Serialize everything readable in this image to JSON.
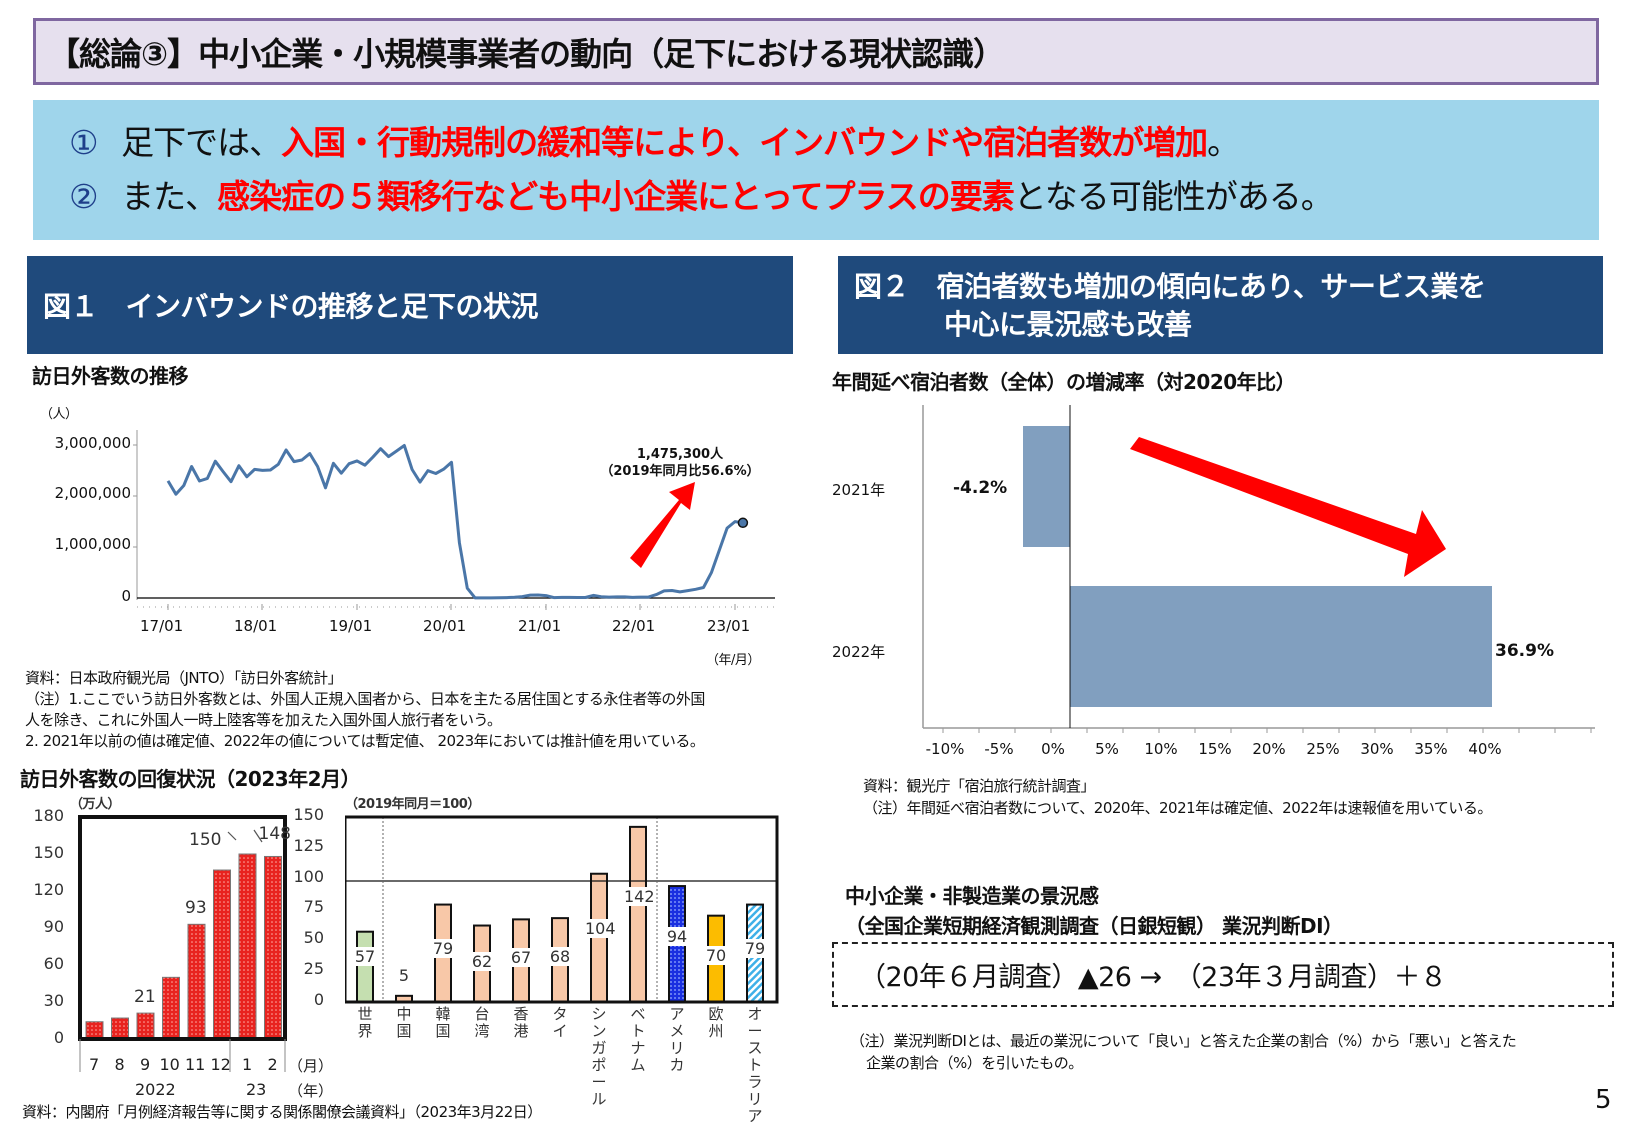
{
  "page": {
    "title": "【総論③】中小企業・小規模事業者の動向（足下における現状認識）",
    "page_number": "5"
  },
  "summary": {
    "line1": {
      "num": "①",
      "pre": "足下では、",
      "highlight": "入国・行動規制の緩和等により、インバウンドや宿泊者数が増加",
      "post": "。"
    },
    "line2": {
      "num": "②",
      "pre": "また、",
      "highlight": "感染症の５類移行なども中小企業にとってプラスの要素",
      "post": "となる可能性がある。"
    },
    "highlight_color": "#ff0000",
    "background": "#9fd5eb"
  },
  "fig1": {
    "header": "図１　インバウンドの推移と足下の状況",
    "line_chart": {
      "title": "訪日外客数の推移",
      "unit": "（人）",
      "y_ticks": [
        "3,000,000",
        "2,000,000",
        "1,000,000",
        "0"
      ],
      "x_ticks": [
        "17/01",
        "18/01",
        "19/01",
        "20/01",
        "21/01",
        "22/01",
        "23/01"
      ],
      "x_unit": "（年/月）",
      "annotation_line1": "1,475,300人",
      "annotation_line2": "（2019年同月比56.6%）"
    },
    "source": "資料：日本政府観光局（JNTO）「訪日外客統計」",
    "note1": "（注）1.ここでいう訪日外客数とは、外国人正規入国者から、日本を主たる居住国とする永住者等の外国",
    "note1b": "人を除き、これに外国人一時上陸客等を加えた入国外国人旅行者をいう。",
    "note2": "2. 2021年以前の値は確定値、2022年の値については暫定値、 2023年においては推計値を用いている。",
    "recovery": {
      "title": "訪日外客数の回復状況（2023年2月）",
      "left_unit": "（万人）",
      "left_y_ticks": [
        "180",
        "150",
        "120",
        "90",
        "60",
        "30",
        "0"
      ],
      "left_months": [
        "7",
        "8",
        "9",
        "10",
        "11",
        "12",
        "1",
        "2"
      ],
      "left_years": [
        "2022",
        "23"
      ],
      "month_unit": "（月）",
      "year_unit": "（年）",
      "left_labels": [
        "",
        "",
        "21",
        "",
        "93",
        "",
        "150",
        "148"
      ],
      "right_unit": "（2019年同月＝100）",
      "right_y_ticks": [
        "150",
        "125",
        "100",
        "75",
        "50",
        "25",
        "0"
      ],
      "right_categories": [
        "世界",
        "中国",
        "韓国",
        "台湾",
        "香港",
        "タイ",
        "シンガポール",
        "ベトナム",
        "アメリカ",
        "欧州",
        "オーストラリア"
      ],
      "right_labels": [
        "57",
        "5",
        "79",
        "62",
        "67",
        "68",
        "104",
        "142",
        "94",
        "70",
        "79"
      ]
    },
    "recovery_source": "資料：内閣府「月例経済報告等に関する関係閣僚会議資料」（2023年3月22日）"
  },
  "fig2": {
    "header_line1": "図２　宿泊者数も増加の傾向にあり、サービス業を",
    "header_line2": "中心に景況感も改善",
    "bar_chart_title": "年間延べ宿泊者数（全体）の増減率（対2020年比）",
    "categories": [
      "2021年",
      "2022年"
    ],
    "value_labels": [
      "-4.2%",
      "36.9%"
    ],
    "x_ticks": [
      "-10%",
      "-5%",
      "0%",
      "5%",
      "10%",
      "15%",
      "20%",
      "25%",
      "30%",
      "35%",
      "40%"
    ],
    "source": "資料：観光庁「宿泊旅行統計調査」",
    "note": "（注）年間延べ宿泊者数について、2020年、2021年は確定値、2022年は速報値を用いている。",
    "di_title1": "中小企業・非製造業の景況感",
    "di_title2": "（全国企業短期経済観測調査（日銀短観） 業況判断DI）",
    "di_value": "（20年６月調査）▲26 →　（23年３月調査）＋８",
    "di_note1": "（注）業況判断DIとは、最近の業況について「良い」と答えた企業の割合（%）から「悪い」と答えた",
    "di_note2": "企業の割合（%）を引いたもの。"
  },
  "colors": {
    "header_bg": "#1f4a7c",
    "title_bg": "#e6e0ee",
    "title_border": "#7f67a0",
    "line": "#4a76a8",
    "hbar": "#819fbf",
    "arrow": "#ff0000",
    "recovery_bar": "#e8231f",
    "asia_bar": "#f8c8a8",
    "world_bar": "#c5dfb0",
    "usa_bar": "#1a2fe0",
    "europe_bar": "#fcbc00",
    "aus_bar": "#3fb0e8"
  },
  "chart_data": [
    {
      "type": "line",
      "title": "訪日外客数の推移",
      "ylabel": "（人）",
      "xlabel": "（年/月）",
      "ylim": [
        0,
        3000000
      ],
      "x_start": "2017-01",
      "x_end": "2023-02",
      "x_tick_labels": [
        "17/01",
        "18/01",
        "19/01",
        "20/01",
        "21/01",
        "22/01",
        "23/01"
      ],
      "values": [
        2296000,
        2035000,
        2206000,
        2578000,
        2295000,
        2346000,
        2682000,
        2478000,
        2280000,
        2595000,
        2377000,
        2521000,
        2501000,
        2509000,
        2621000,
        2901000,
        2675000,
        2705000,
        2832000,
        2578000,
        2160000,
        2641000,
        2448000,
        2633000,
        2689000,
        2604000,
        2761000,
        2927000,
        2773000,
        2880000,
        2991000,
        2520000,
        2272000,
        2497000,
        2441000,
        2526000,
        2661000,
        1085000,
        193000,
        2900,
        1700,
        2600,
        3800,
        8700,
        13700,
        27400,
        56700,
        58700,
        46500,
        7400,
        12300,
        10900,
        10000,
        9300,
        51100,
        25900,
        17700,
        22100,
        20700,
        12100,
        17800,
        16700,
        66100,
        139500,
        147000,
        120400,
        144500,
        169900,
        206600,
        498600,
        934500,
        1371000,
        1497300,
        1475300
      ],
      "annotation": "1,475,300人（2019年同月比56.6%）"
    },
    {
      "type": "bar",
      "title": "訪日外客数の回復状況（2023年2月）",
      "ylabel": "（万人）",
      "ylim": [
        0,
        180
      ],
      "categories": [
        "2022/7",
        "2022/8",
        "2022/9",
        "2022/10",
        "2022/11",
        "2022/12",
        "2023/1",
        "2023/2"
      ],
      "values": [
        14,
        17,
        21,
        50,
        93,
        137,
        150,
        148
      ]
    },
    {
      "type": "bar",
      "title": "2019年同月比（2019年同月＝100）",
      "ylim": [
        0,
        150
      ],
      "reference_line": 100,
      "categories": [
        "世界",
        "中国",
        "韓国",
        "台湾",
        "香港",
        "タイ",
        "シンガポール",
        "ベトナム",
        "アメリカ",
        "欧州",
        "オーストラリア"
      ],
      "values": [
        57,
        5,
        79,
        62,
        67,
        68,
        104,
        142,
        94,
        70,
        79
      ]
    },
    {
      "type": "bar",
      "orientation": "horizontal",
      "title": "年間延べ宿泊者数（全体）の増減率（対2020年比）",
      "categories": [
        "2021年",
        "2022年"
      ],
      "values": [
        -4.2,
        36.9
      ],
      "xlim": [
        -13,
        45
      ],
      "x_tick_labels": [
        "-10%",
        "-5%",
        "0%",
        "5%",
        "10%",
        "15%",
        "20%",
        "25%",
        "30%",
        "35%",
        "40%"
      ]
    }
  ]
}
